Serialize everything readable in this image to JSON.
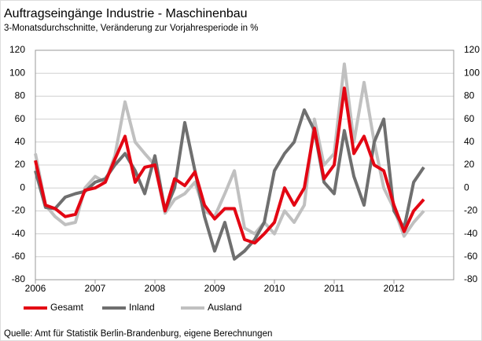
{
  "chart_data": {
    "type": "line",
    "title": "Auftragseingänge Industrie - Maschinenbau",
    "subtitle": "3-Monatsdurchschnitte, Veränderung zur Vorjahresperiode in %",
    "source": "Quelle: Amt für Statistik Berlin-Brandenburg, eigene Berechnungen",
    "x": [
      2006.0,
      2006.17,
      2006.33,
      2006.5,
      2006.67,
      2006.83,
      2007.0,
      2007.17,
      2007.33,
      2007.5,
      2007.67,
      2007.83,
      2008.0,
      2008.17,
      2008.33,
      2008.5,
      2008.67,
      2008.83,
      2009.0,
      2009.17,
      2009.33,
      2009.5,
      2009.67,
      2009.83,
      2010.0,
      2010.17,
      2010.33,
      2010.5,
      2010.67,
      2010.83,
      2011.0,
      2011.17,
      2011.33,
      2011.5,
      2011.67,
      2011.83,
      2012.0,
      2012.17,
      2012.33,
      2012.5
    ],
    "series": [
      {
        "name": "Gesamt",
        "color": "#e30613",
        "values": [
          24,
          -15,
          -18,
          -25,
          -23,
          -2,
          0,
          5,
          25,
          45,
          5,
          18,
          20,
          -20,
          8,
          2,
          14,
          -15,
          -27,
          -18,
          -18,
          -45,
          -48,
          -40,
          -30,
          0,
          -15,
          0,
          52,
          8,
          20,
          87,
          30,
          45,
          20,
          15,
          -15,
          -38,
          -20,
          -10
        ]
      },
      {
        "name": "Inland",
        "color": "#6f6f6f",
        "values": [
          15,
          -17,
          -18,
          -8,
          -5,
          -3,
          5,
          8,
          20,
          30,
          15,
          -5,
          28,
          -20,
          0,
          57,
          15,
          -25,
          -55,
          -30,
          -62,
          -55,
          -45,
          -30,
          15,
          30,
          40,
          68,
          50,
          5,
          -5,
          50,
          10,
          -15,
          40,
          60,
          -20,
          -35,
          5,
          18
        ]
      },
      {
        "name": "Ausland",
        "color": "#c0c0c0",
        "values": [
          30,
          -15,
          -25,
          -32,
          -30,
          0,
          10,
          5,
          28,
          75,
          40,
          30,
          20,
          -22,
          -10,
          -5,
          5,
          -20,
          -25,
          -5,
          15,
          -35,
          -40,
          -30,
          -40,
          -20,
          -30,
          -15,
          60,
          20,
          30,
          108,
          40,
          92,
          40,
          0,
          -18,
          -42,
          -30,
          -20
        ]
      }
    ],
    "xlim": [
      2006,
      2013
    ],
    "xticks": [
      2006,
      2007,
      2008,
      2009,
      2010,
      2011,
      2012
    ],
    "ylim": [
      -80,
      120
    ],
    "yticks": [
      -80,
      -60,
      -40,
      -20,
      0,
      20,
      40,
      60,
      80,
      100,
      120
    ],
    "y2lim": [
      -80,
      120
    ],
    "y2ticks": [
      -80,
      -60,
      -40,
      -20,
      0,
      20,
      40,
      60,
      80,
      100,
      120
    ],
    "grid": true,
    "legend": "bottom"
  }
}
